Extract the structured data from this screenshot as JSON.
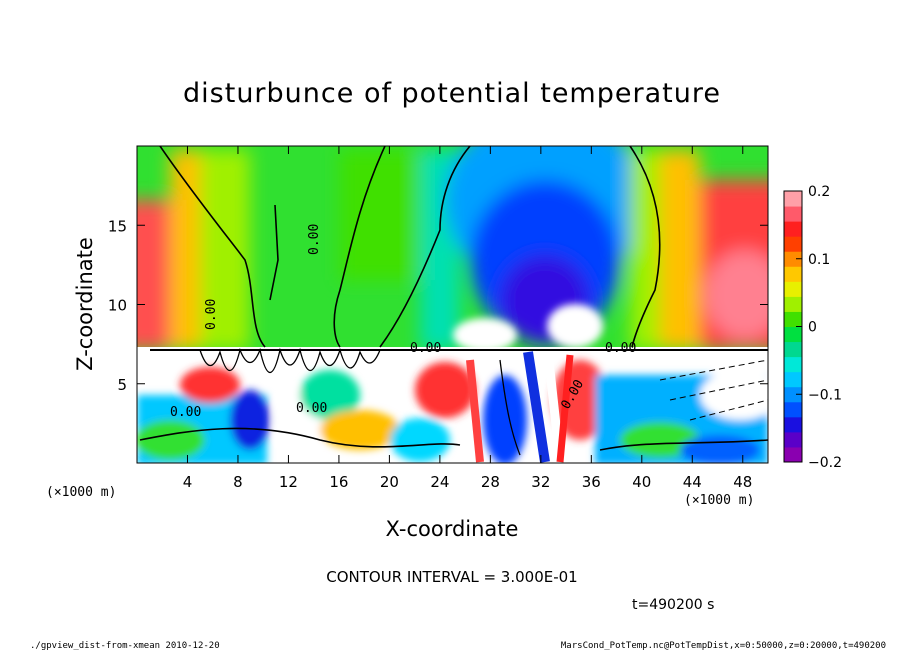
{
  "chart_data": {
    "type": "heatmap",
    "title": "disturbunce of potential temperature",
    "xlabel": "X-coordinate",
    "ylabel": "Z-coordinate",
    "x_unit_left": "(×1000 m)",
    "x_unit_right": "(×1000 m)",
    "xlim": [
      0,
      50
    ],
    "ylim": [
      0,
      20
    ],
    "x_ticks": [
      "4",
      "8",
      "12",
      "16",
      "20",
      "24",
      "28",
      "32",
      "36",
      "40",
      "44",
      "48"
    ],
    "y_ticks": [
      "5",
      "10",
      "15"
    ],
    "colorbar": {
      "min": -0.2,
      "max": 0.2,
      "ticks": [
        "0.2",
        "0.1",
        "0",
        "−0.1",
        "−0.2"
      ],
      "colors": [
        "#8a00b0",
        "#5a00c8",
        "#1a10e0",
        "#0050ff",
        "#0090ff",
        "#00c8ff",
        "#00e8d8",
        "#00d890",
        "#00e040",
        "#40e000",
        "#a0f000",
        "#e8f000",
        "#ffc800",
        "#ff8c00",
        "#ff4000",
        "#ff2020",
        "#ff5a6a",
        "#ffa0a8"
      ]
    },
    "contour_interval_text": "CONTOUR INTERVAL = 3.000E-01",
    "contour_labels": [
      "0.00",
      "0.00",
      "0.00",
      "0.00",
      "0.00",
      "0.00",
      "0.00"
    ],
    "time_text": "t=490200 s"
  },
  "footer": {
    "left": "./gpview_dist-from-xmean  2010-12-20",
    "right": "MarsCond_PotTemp.nc@PotTempDist,x=0:50000,z=0:20000,t=490200"
  }
}
